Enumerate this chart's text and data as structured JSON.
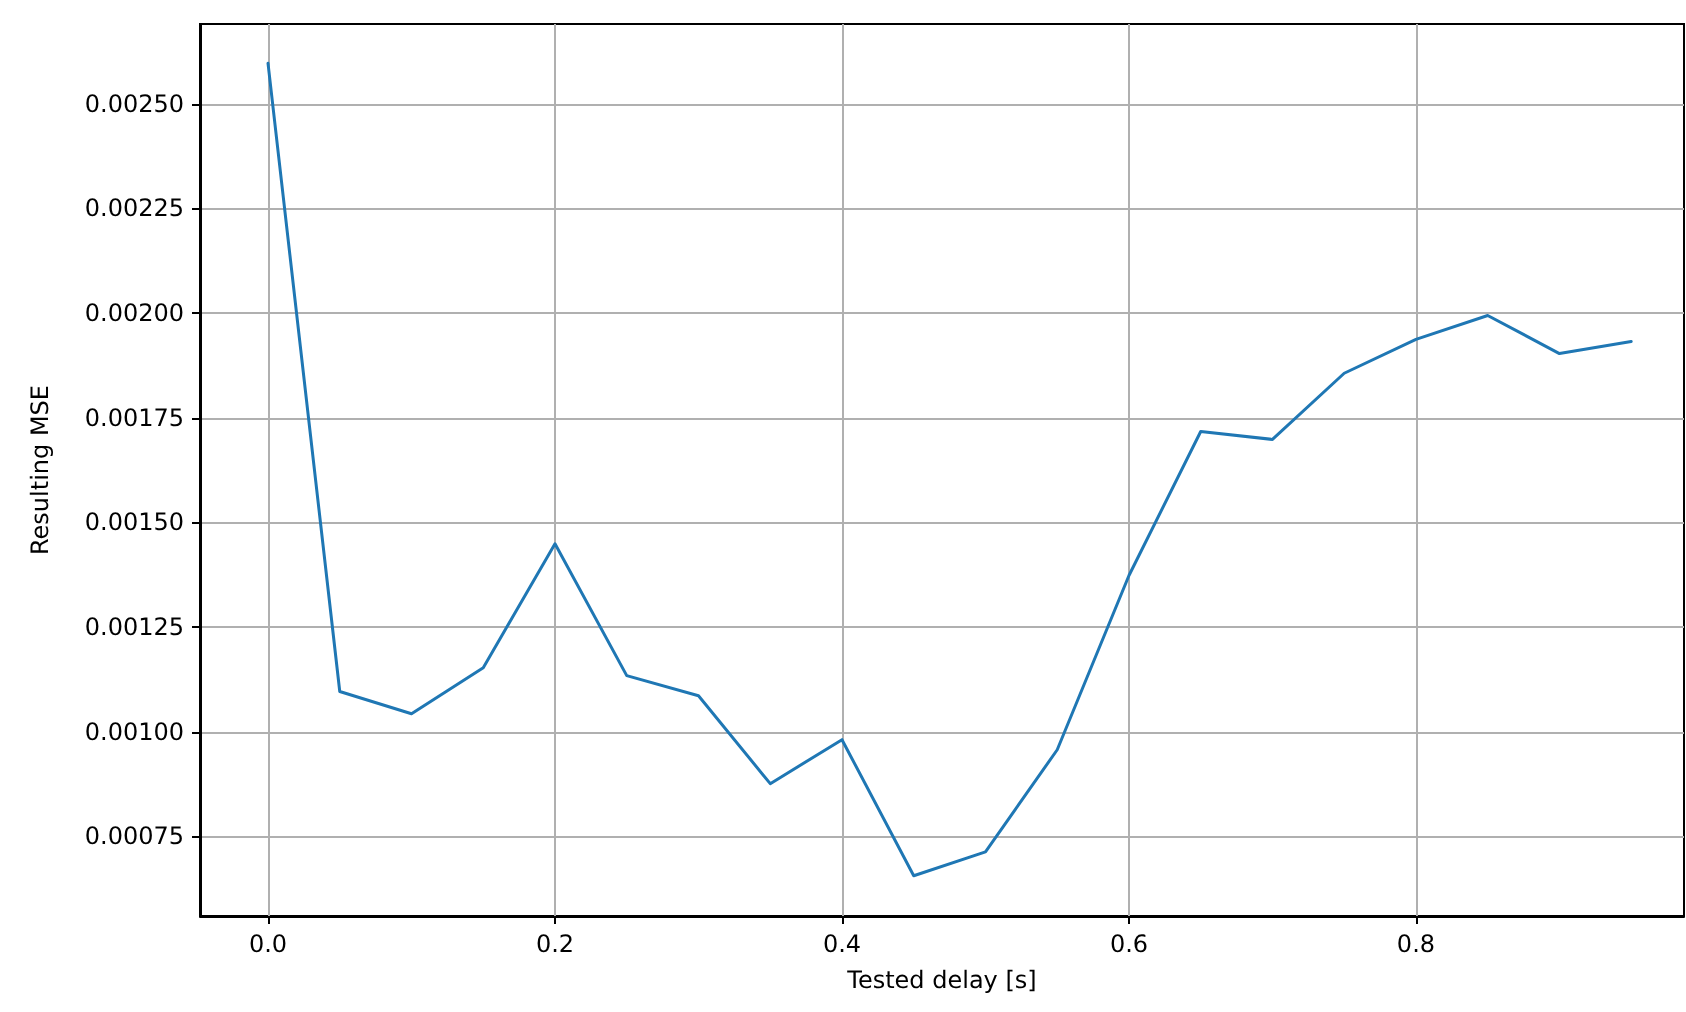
{
  "chart_data": {
    "type": "line",
    "xlabel": "Tested delay [s]",
    "ylabel": "Resulting MSE",
    "x": [
      0.0,
      0.05,
      0.1,
      0.15,
      0.2,
      0.25,
      0.3,
      0.35,
      0.4,
      0.45,
      0.5,
      0.55,
      0.6,
      0.65,
      0.7,
      0.75,
      0.8,
      0.85,
      0.9,
      0.95
    ],
    "series": [
      {
        "color": "#1f77b4",
        "values": [
          0.002596,
          0.001096,
          0.001043,
          0.001153,
          0.001449,
          0.001134,
          0.001086,
          0.000876,
          0.000981,
          0.000656,
          0.000713,
          0.000957,
          0.001373,
          0.001717,
          0.001698,
          0.001856,
          0.001937,
          0.001994,
          0.001903,
          0.001932
        ]
      }
    ],
    "xlim": [
      -0.0474,
      0.9868
    ],
    "ylim": [
      0.00056,
      0.00269
    ],
    "xticks": [
      {
        "value": 0,
        "label": "0.0"
      },
      {
        "value": 0.2,
        "label": "0.2"
      },
      {
        "value": 0.4,
        "label": "0.4"
      },
      {
        "value": 0.6,
        "label": "0.6"
      },
      {
        "value": 0.8,
        "label": "0.8"
      }
    ],
    "yticks": [
      {
        "value": 0.00075,
        "label": "0.00075"
      },
      {
        "value": 0.001,
        "label": "0.00100"
      },
      {
        "value": 0.00125,
        "label": "0.00125"
      },
      {
        "value": 0.0015,
        "label": "0.00150"
      },
      {
        "value": 0.00175,
        "label": "0.00175"
      },
      {
        "value": 0.002,
        "label": "0.00200"
      },
      {
        "value": 0.00225,
        "label": "0.00225"
      },
      {
        "value": 0.0025,
        "label": "0.00250"
      }
    ],
    "grid": true,
    "marker": "none",
    "line_style": "solid"
  }
}
